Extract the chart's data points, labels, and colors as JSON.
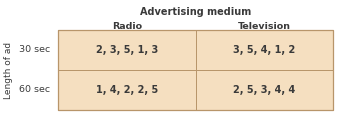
{
  "title_top": "Advertising medium",
  "col_headers": [
    "Radio",
    "Television"
  ],
  "row_headers": [
    "30 sec",
    "60 sec"
  ],
  "row_label": "Length of ad",
  "cell_data": [
    [
      "2, 3, 5, 1, 3",
      "3, 5, 4, 1, 2"
    ],
    [
      "1, 4, 2, 2, 5",
      "2, 5, 3, 4, 4"
    ]
  ],
  "cell_bg": "#f5dfc0",
  "border_color": "#b8956a",
  "text_color": "#3a3a3a",
  "title_fontsize": 7.0,
  "header_fontsize": 6.8,
  "cell_fontsize": 7.0,
  "row_label_fontsize": 6.5,
  "fig_w": 3.41,
  "fig_h": 1.2,
  "dpi": 100
}
